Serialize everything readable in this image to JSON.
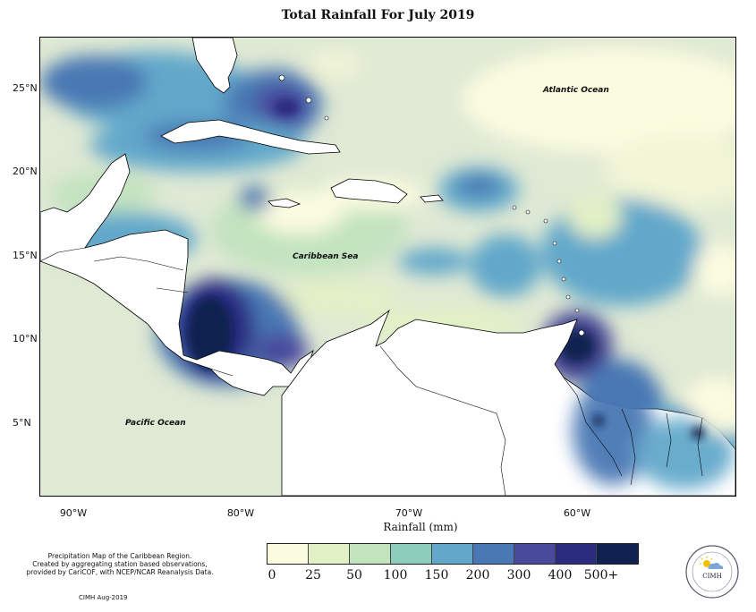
{
  "title": "Total Rainfall For July 2019",
  "y_ticks": [
    "25°N",
    "20°N",
    "15°N",
    "10°N",
    "5°N"
  ],
  "x_ticks": [
    "90°W",
    "80°W",
    "70°W",
    "60°W"
  ],
  "ocean_labels": {
    "atlantic": "Atlantic Ocean",
    "caribbean": "Caribbean Sea",
    "pacific": "Pacific Ocean"
  },
  "legend": {
    "title": "Rainfall (mm)",
    "thresholds": [
      "0",
      "25",
      "50",
      "100",
      "150",
      "200",
      "300",
      "400",
      "500+"
    ],
    "colors": [
      "#fbfbdf",
      "#e2f0c6",
      "#c3e3bf",
      "#8ccdbb",
      "#62a8ca",
      "#4a78b4",
      "#4a4a9c",
      "#2b2c80",
      "#102050"
    ]
  },
  "caption_lines": [
    "Precipitation Map of the Caribbean Region.",
    "Created by aggregating station based observations,",
    "provided by CariCOF, with NCEP/NCAR Reanalysis Data."
  ],
  "credit": "CIMH Aug-2019",
  "logo": {
    "text": "CIMH",
    "icon": "sun-cloud-icon"
  }
}
